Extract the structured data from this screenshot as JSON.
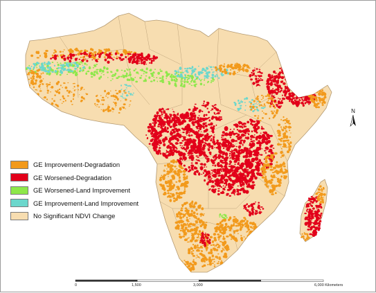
{
  "colors": {
    "background": "#ffffff",
    "land": "#f7ddb0",
    "border": "#b49a72",
    "improvement_degradation": "#f29a1c",
    "worsened_degradation": "#e2001a",
    "worsened_land_improvement": "#8ee84a",
    "improvement_land_improvement": "#6cd7cc"
  },
  "legend": {
    "items": [
      {
        "label": "GE Improvement-Degradation",
        "color": "#f29a1c"
      },
      {
        "label": "GE Worsened-Degradation",
        "color": "#e2001a"
      },
      {
        "label": "GE Worsened-Land Improvement",
        "color": "#8ee84a"
      },
      {
        "label": "GE Improvement-Land Improvement",
        "color": "#6cd7cc"
      },
      {
        "label": "No Significant NDVI Change",
        "color": "#f7ddb0"
      }
    ]
  },
  "north_arrow": {
    "label": "N"
  },
  "scale_bar": {
    "ticks": [
      "0",
      "1,500",
      "3,000",
      "6,000 Kilometers"
    ],
    "tick_values": [
      0,
      1500,
      3000,
      6000
    ]
  }
}
